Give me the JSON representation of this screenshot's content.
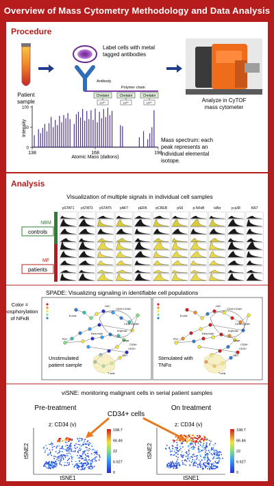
{
  "title": "Overview of Mass Cytometry Methodology and Data Analysis",
  "procedure": {
    "heading": "Procedure",
    "patient_sample": "Patient sample",
    "label_text_1": "Label cells with metal",
    "label_text_2": "tagged antibodies",
    "antibody": "Antibody",
    "polymer_chain": "Polymer chain",
    "chelator": "Chelator",
    "metal": "Ln³⁺",
    "analyze_1": "Analyze in CyTOF",
    "analyze_2": "mass cytometer",
    "spectrum_note_1": "Mass spectrum: each",
    "spectrum_note_2": "peak represents an",
    "spectrum_note_3": "individual elemental",
    "spectrum_note_4": "isotope."
  },
  "chart_data": {
    "type": "line",
    "xlabel": "Atomic Mass (daltons)",
    "ylabel": "Intensity",
    "x_ticks": [
      138,
      168,
      198
    ],
    "y_ticks": [
      0,
      50,
      100
    ],
    "xlim": [
      138,
      198
    ],
    "ylim": [
      0,
      100
    ],
    "peaks_x": [
      139,
      141,
      142,
      143,
      144,
      145,
      146,
      147,
      148,
      149,
      150,
      151,
      152,
      153,
      154,
      155,
      156,
      158,
      159,
      160,
      161,
      162,
      163,
      164,
      165,
      166,
      167,
      168,
      169,
      170,
      171,
      172,
      173,
      174,
      175,
      176,
      180,
      181,
      189,
      191,
      193,
      194,
      195,
      196
    ],
    "peaks_y": [
      30,
      45,
      35,
      48,
      58,
      40,
      60,
      75,
      50,
      68,
      55,
      78,
      62,
      80,
      72,
      85,
      70,
      58,
      82,
      88,
      74,
      95,
      66,
      90,
      70,
      92,
      68,
      96,
      62,
      88,
      72,
      95,
      75,
      98,
      80,
      90,
      55,
      52,
      25,
      40,
      20,
      35,
      50,
      92
    ]
  },
  "analysis": {
    "heading": "Analysis",
    "viz_title": "Visualization of multiple signals in individual cell samples",
    "columns": [
      "pSTAT1",
      "pSTAT3",
      "pSTAT5",
      "pAKT",
      "pERK",
      "pCREB",
      "pS6",
      "p-NFκB",
      "IκBα",
      "p-p38",
      "Ki67"
    ],
    "nbm_label": "NBM",
    "nbm_group": "controls",
    "mf_label": "MF",
    "mf_group": "patients",
    "spade_title": "SPADE: Visualizing signaling in identifiable cell populations",
    "color_legend_1": "Color =",
    "color_legend_2": "phosphorylation",
    "color_legend_3": "of NFκB",
    "unstim_1": "Unstimulated",
    "unstim_2": "patient sample",
    "stim_1": "Stimulated with",
    "stim_2": "TNFα",
    "node_labels": [
      "B cells",
      "HSC",
      "CD34+CD38+",
      "Early eryth",
      "PDC",
      "CD34+CD38+",
      "Erythroid",
      "Mega",
      "CD38+",
      "CD33+",
      "NKT",
      "T cells"
    ],
    "visne_title": "viSNE: monitoring malignant cells in serial patient samples",
    "pre": "Pre-treatment",
    "on": "On treatment",
    "cd34_cells": "CD34+ cells",
    "z_label": "z: CD34 (v)",
    "cb_ticks": [
      "198.7",
      "66.46",
      "22",
      "6.627",
      "0"
    ],
    "tsne1": "tSNE1",
    "tsne2": "tSNE2"
  },
  "colors": {
    "accent": "#b71c1c",
    "nbm": "#2e7d32",
    "mf": "#b71c1c"
  }
}
